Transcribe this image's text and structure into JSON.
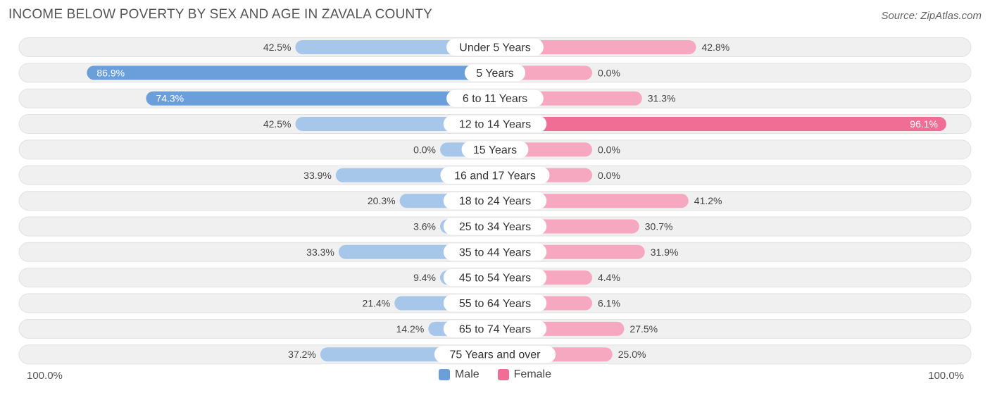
{
  "header": {
    "title": "INCOME BELOW POVERTY BY SEX AND AGE IN ZAVALA COUNTY",
    "source": "Source: ZipAtlas.com"
  },
  "axis": {
    "left_label": "100.0%",
    "right_label": "100.0%"
  },
  "legend": {
    "male_label": "Male",
    "female_label": "Female"
  },
  "colors": {
    "male_strong": "#6a9fdc",
    "male_light": "#a7c7ea",
    "female_strong": "#f06d96",
    "female_light": "#f6a8c1",
    "row_bg": "#f0f0f0",
    "label_pill": "#ffffff"
  },
  "chart_data": {
    "type": "bar",
    "orientation": "horizontal-diverging",
    "title": "INCOME BELOW POVERTY BY SEX AND AGE IN ZAVALA COUNTY",
    "xlim": [
      0,
      100
    ],
    "unit": "%",
    "categories": [
      "Under 5 Years",
      "5 Years",
      "6 to 11 Years",
      "12 to 14 Years",
      "15 Years",
      "16 and 17 Years",
      "18 to 24 Years",
      "25 to 34 Years",
      "35 to 44 Years",
      "45 to 54 Years",
      "55 to 64 Years",
      "65 to 74 Years",
      "75 Years and over"
    ],
    "series": [
      {
        "name": "Male",
        "values": [
          42.5,
          86.9,
          74.3,
          42.5,
          0.0,
          33.9,
          20.3,
          3.6,
          33.3,
          9.4,
          21.4,
          14.2,
          37.2
        ]
      },
      {
        "name": "Female",
        "values": [
          42.8,
          0.0,
          31.3,
          96.1,
          0.0,
          0.0,
          41.2,
          30.7,
          31.9,
          4.4,
          6.1,
          27.5,
          25.0
        ]
      }
    ],
    "value_labels": {
      "male": [
        "42.5%",
        "86.9%",
        "74.3%",
        "42.5%",
        "0.0%",
        "33.9%",
        "20.3%",
        "3.6%",
        "33.3%",
        "9.4%",
        "21.4%",
        "14.2%",
        "37.2%"
      ],
      "female": [
        "42.8%",
        "0.0%",
        "31.3%",
        "96.1%",
        "0.0%",
        "0.0%",
        "41.2%",
        "30.7%",
        "31.9%",
        "4.4%",
        "6.1%",
        "27.5%",
        "25.0%"
      ]
    },
    "legend_position": "bottom-center"
  }
}
